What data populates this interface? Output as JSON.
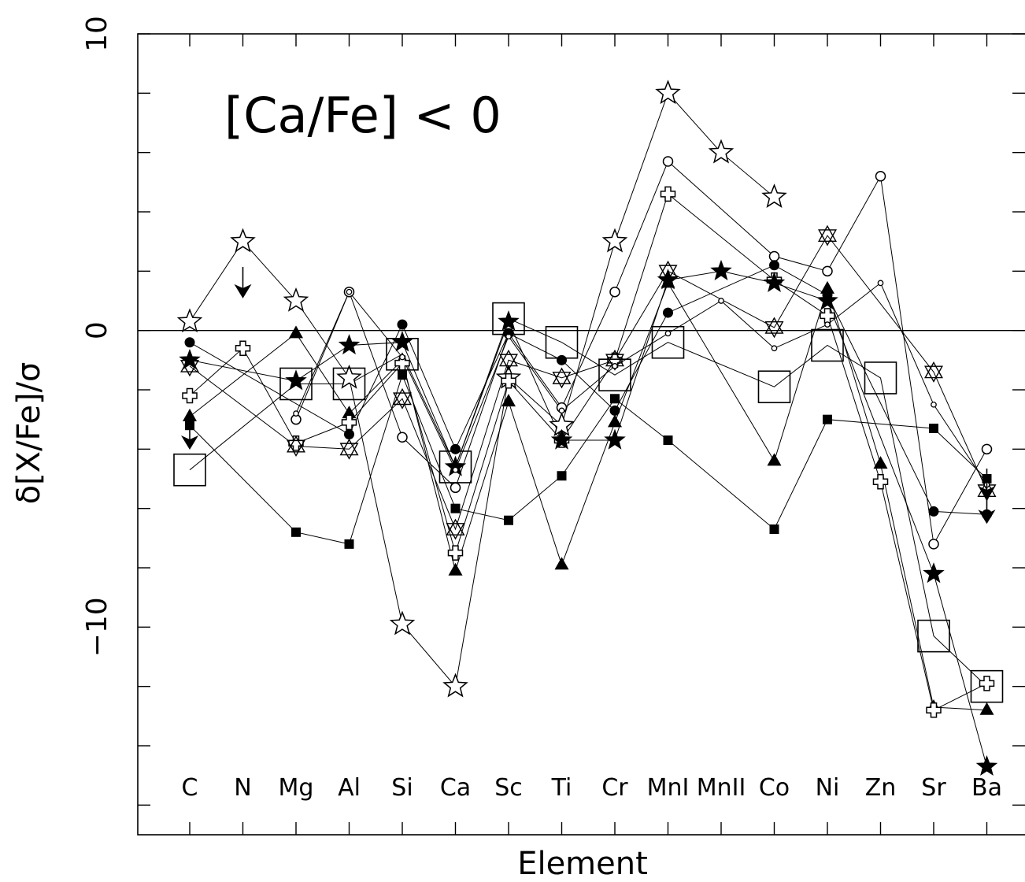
{
  "chart_data": {
    "type": "scatter",
    "xlabel": "Element",
    "ylabel": "δ[X/Fe]/σ",
    "ylim": [
      -17,
      10
    ],
    "grid": false,
    "legend": "none",
    "annotation": "[Ca/Fe] < 0",
    "categories": [
      "C",
      "N",
      "Mg",
      "Al",
      "Si",
      "Ca",
      "Sc",
      "Ti",
      "Cr",
      "MnI",
      "MnII",
      "Co",
      "Ni",
      "Zn",
      "Sr",
      "Ba"
    ],
    "y_ticks_labeled": [
      {
        "value": 10,
        "label": "10"
      },
      {
        "value": 0,
        "label": "0"
      },
      {
        "value": -10,
        "label": "−10"
      }
    ],
    "zero_line": 0,
    "series": [
      {
        "marker": "open-star",
        "points": [
          [
            0,
            0.3
          ],
          [
            1,
            3.0
          ],
          [
            2,
            1.0
          ],
          [
            3,
            -1.6
          ],
          [
            4,
            -9.9
          ],
          [
            5,
            -12.0
          ],
          [
            6,
            -1.6
          ],
          [
            7,
            -3.2
          ],
          [
            8,
            3.0
          ],
          [
            9,
            8.0
          ],
          [
            10,
            6.0
          ],
          [
            11,
            4.5
          ]
        ]
      },
      {
        "marker": "open-circle",
        "points": [
          [
            2,
            -3.0
          ],
          [
            3,
            1.3
          ],
          [
            4,
            -3.6
          ],
          [
            5,
            -5.3
          ],
          [
            6,
            -0.1
          ],
          [
            7,
            -2.6
          ],
          [
            8,
            1.3
          ],
          [
            9,
            5.7
          ],
          [
            11,
            2.5
          ],
          [
            12,
            2.0
          ],
          [
            13,
            5.2
          ],
          [
            14,
            -7.2
          ],
          [
            15,
            -4.0
          ]
        ]
      },
      {
        "marker": "filled-circle",
        "points": [
          [
            0,
            -0.4
          ],
          [
            3,
            -3.5
          ],
          [
            4,
            0.2
          ],
          [
            5,
            -4.0
          ],
          [
            6,
            -0.1
          ],
          [
            7,
            -1.0
          ],
          [
            8,
            -2.7
          ],
          [
            9,
            0.6
          ],
          [
            11,
            2.2
          ],
          [
            12,
            1.2
          ],
          [
            14,
            -6.1
          ],
          [
            15,
            -6.2
          ]
        ]
      },
      {
        "marker": "filled-square",
        "points": [
          [
            0,
            -3.2
          ],
          [
            2,
            -6.8
          ],
          [
            3,
            -7.2
          ],
          [
            4,
            -1.5
          ],
          [
            5,
            -6.0
          ],
          [
            6,
            -6.4
          ],
          [
            7,
            -4.9
          ],
          [
            8,
            -2.3
          ],
          [
            9,
            -3.7
          ],
          [
            11,
            -6.7
          ],
          [
            12,
            -3.0
          ],
          [
            14,
            -3.3
          ],
          [
            15,
            -5.0
          ]
        ]
      },
      {
        "marker": "filled-triangle",
        "points": [
          [
            0,
            -2.9
          ],
          [
            2,
            -0.1
          ],
          [
            3,
            -2.8
          ],
          [
            4,
            -1.0
          ],
          [
            5,
            -8.1
          ],
          [
            6,
            -2.4
          ],
          [
            7,
            -7.9
          ],
          [
            8,
            -3.1
          ],
          [
            9,
            1.6
          ],
          [
            11,
            -4.4
          ],
          [
            12,
            1.4
          ],
          [
            13,
            -4.5
          ],
          [
            14,
            -12.7
          ],
          [
            15,
            -12.8
          ]
        ]
      },
      {
        "marker": "open-cross",
        "points": [
          [
            0,
            -2.2
          ],
          [
            1,
            -0.6
          ],
          [
            2,
            -3.8
          ],
          [
            3,
            -3.1
          ],
          [
            4,
            -1.1
          ],
          [
            5,
            -7.5
          ],
          [
            6,
            -1.7
          ],
          [
            7,
            -3.7
          ],
          [
            8,
            -1.0
          ],
          [
            9,
            4.6
          ],
          [
            11,
            1.7
          ],
          [
            12,
            0.5
          ],
          [
            13,
            -5.1
          ],
          [
            14,
            -12.8
          ],
          [
            15,
            -11.9
          ]
        ]
      },
      {
        "marker": "open-hexagram",
        "points": [
          [
            0,
            -1.2
          ],
          [
            2,
            -3.9
          ],
          [
            3,
            -4.0
          ],
          [
            4,
            -2.3
          ],
          [
            5,
            -6.7
          ],
          [
            6,
            -1.0
          ],
          [
            7,
            -1.6
          ],
          [
            8,
            -1.0
          ],
          [
            9,
            2.0
          ],
          [
            11,
            0.1
          ],
          [
            12,
            3.2
          ],
          [
            14,
            -1.4
          ],
          [
            15,
            -5.4
          ]
        ]
      },
      {
        "marker": "filled-star",
        "points": [
          [
            0,
            -1.0
          ],
          [
            2,
            -1.7
          ],
          [
            3,
            -0.5
          ],
          [
            4,
            -0.4
          ],
          [
            5,
            -4.6
          ],
          [
            6,
            0.3
          ],
          [
            7,
            -3.7
          ],
          [
            8,
            -3.7
          ],
          [
            9,
            1.7
          ],
          [
            10,
            2.0
          ],
          [
            11,
            1.6
          ],
          [
            12,
            1.0
          ],
          [
            14,
            -8.2
          ],
          [
            15,
            -14.7
          ]
        ]
      },
      {
        "marker": "small-open-circle",
        "points": [
          [
            2,
            -2.8
          ],
          [
            3,
            1.3
          ],
          [
            4,
            -0.9
          ],
          [
            5,
            -4.7
          ],
          [
            6,
            -0.2
          ],
          [
            7,
            -2.7
          ],
          [
            8,
            -1.2
          ],
          [
            9,
            -0.1
          ],
          [
            10,
            1.0
          ],
          [
            11,
            -0.6
          ],
          [
            12,
            0.2
          ],
          [
            13,
            1.6
          ],
          [
            14,
            -2.5
          ],
          [
            15,
            -5.2
          ]
        ]
      },
      {
        "marker": "large-open-square",
        "points": [
          [
            0,
            -4.7
          ],
          [
            2,
            -1.8
          ],
          [
            3,
            -1.8
          ],
          [
            4,
            -0.8
          ],
          [
            5,
            -4.6
          ],
          [
            6,
            0.4
          ],
          [
            7,
            -0.4
          ],
          [
            8,
            -1.5
          ],
          [
            9,
            -0.4
          ],
          [
            11,
            -1.9
          ],
          [
            12,
            -0.5
          ],
          [
            13,
            -1.6
          ],
          [
            14,
            -10.3
          ],
          [
            15,
            -12.0
          ]
        ]
      }
    ],
    "upper_limit_arrows": [
      [
        0,
        -3.7
      ],
      [
        1,
        1.4
      ],
      [
        15,
        -5.4
      ],
      [
        15,
        -6.2
      ]
    ]
  }
}
